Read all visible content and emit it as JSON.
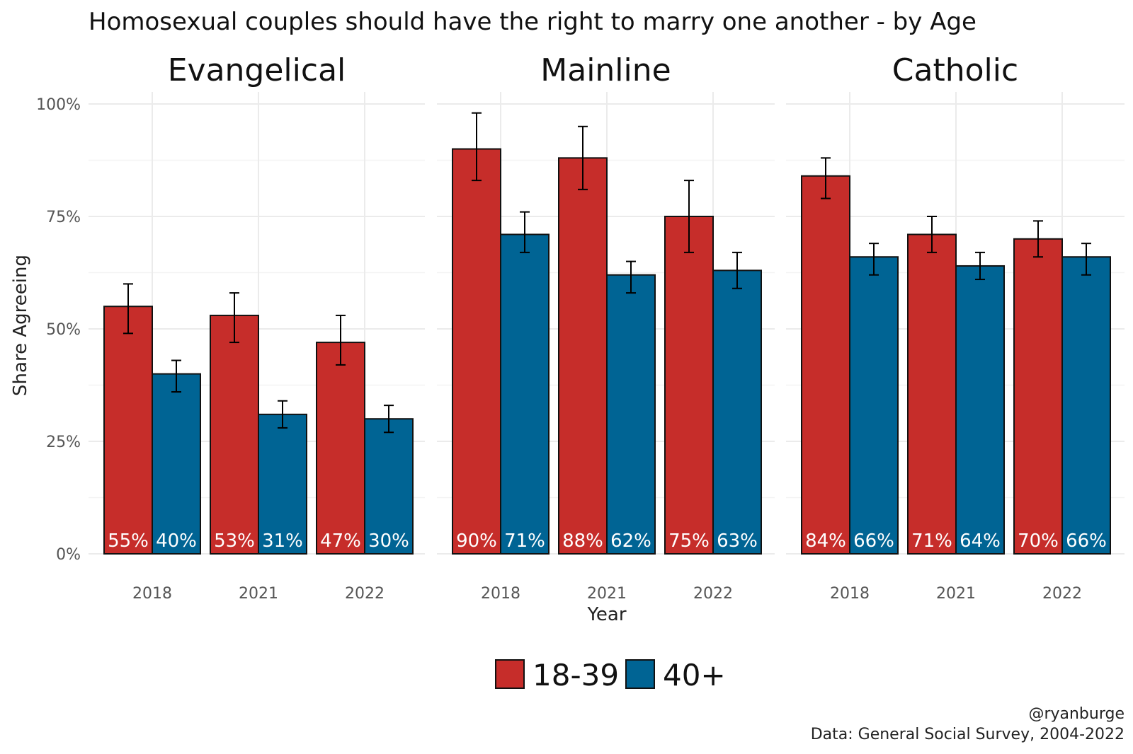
{
  "chart_data": {
    "type": "bar",
    "title": "Homosexual couples should have the right to marry one another - by Age",
    "xlabel": "Year",
    "ylabel": "Share Agreeing",
    "ylim": [
      0,
      1
    ],
    "yticks": [
      {
        "value": 0,
        "label": "0%"
      },
      {
        "value": 0.25,
        "label": "25%"
      },
      {
        "value": 0.5,
        "label": "50%"
      },
      {
        "value": 0.75,
        "label": "75%"
      },
      {
        "value": 1,
        "label": "100%"
      }
    ],
    "categories": [
      "2018",
      "2021",
      "2022"
    ],
    "legend": [
      {
        "name": "18-39",
        "color": "#c62d2a"
      },
      {
        "name": "40+",
        "color": "#006494"
      }
    ],
    "legend_position": "bottom",
    "facets": [
      {
        "name": "Evangelical",
        "series": [
          {
            "name": "18-39",
            "values": [
              0.55,
              0.53,
              0.47
            ],
            "labels": [
              "55%",
              "53%",
              "47%"
            ],
            "err_low": [
              0.49,
              0.47,
              0.42
            ],
            "err_high": [
              0.6,
              0.58,
              0.53
            ]
          },
          {
            "name": "40+",
            "values": [
              0.4,
              0.31,
              0.3
            ],
            "labels": [
              "40%",
              "31%",
              "30%"
            ],
            "err_low": [
              0.36,
              0.28,
              0.27
            ],
            "err_high": [
              0.43,
              0.34,
              0.33
            ]
          }
        ]
      },
      {
        "name": "Mainline",
        "series": [
          {
            "name": "18-39",
            "values": [
              0.9,
              0.88,
              0.75
            ],
            "labels": [
              "90%",
              "88%",
              "75%"
            ],
            "err_low": [
              0.83,
              0.81,
              0.67
            ],
            "err_high": [
              0.98,
              0.95,
              0.83
            ]
          },
          {
            "name": "40+",
            "values": [
              0.71,
              0.62,
              0.63
            ],
            "labels": [
              "71%",
              "62%",
              "63%"
            ],
            "err_low": [
              0.67,
              0.58,
              0.59
            ],
            "err_high": [
              0.76,
              0.65,
              0.67
            ]
          }
        ]
      },
      {
        "name": "Catholic",
        "series": [
          {
            "name": "18-39",
            "values": [
              0.84,
              0.71,
              0.7
            ],
            "labels": [
              "84%",
              "71%",
              "70%"
            ],
            "err_low": [
              0.79,
              0.67,
              0.66
            ],
            "err_high": [
              0.88,
              0.75,
              0.74
            ]
          },
          {
            "name": "40+",
            "values": [
              0.66,
              0.64,
              0.66
            ],
            "labels": [
              "66%",
              "64%",
              "66%"
            ],
            "err_low": [
              0.62,
              0.61,
              0.62
            ],
            "err_high": [
              0.69,
              0.67,
              0.69
            ]
          }
        ]
      }
    ],
    "caption": [
      "@ryanburge",
      "Data: General Social Survey, 2004-2022"
    ]
  }
}
